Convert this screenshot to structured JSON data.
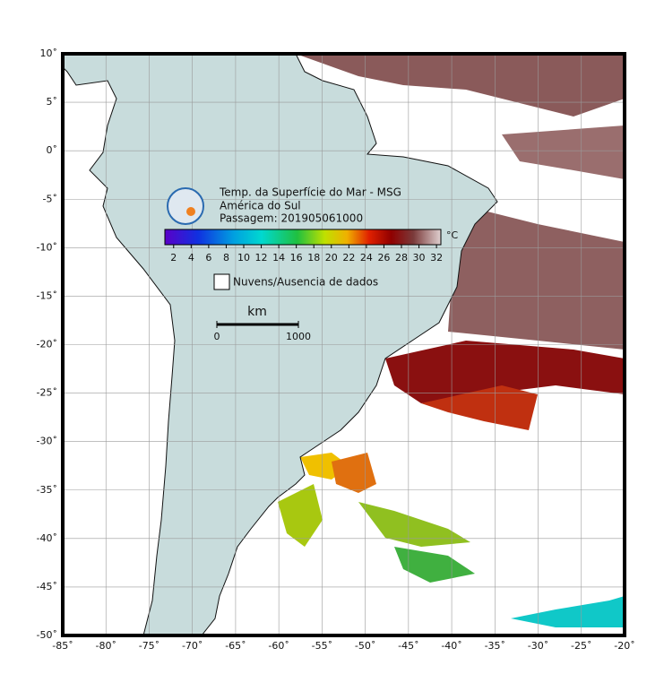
{
  "map": {
    "title_lines": [
      "Temp. da Superfície do Mar - MSG",
      "América do Sul",
      "Passagem: 201905061000"
    ],
    "lonlim": [
      -85,
      -20
    ],
    "latlim": [
      -50,
      10
    ],
    "lon_ticks": [
      {
        "value": -85,
        "label": "-85˚"
      },
      {
        "value": -80,
        "label": "-80˚"
      },
      {
        "value": -75,
        "label": "-75˚"
      },
      {
        "value": -70,
        "label": "-70˚"
      },
      {
        "value": -65,
        "label": "-65˚"
      },
      {
        "value": -60,
        "label": "-60˚"
      },
      {
        "value": -55,
        "label": "-55˚"
      },
      {
        "value": -50,
        "label": "-50˚"
      },
      {
        "value": -45,
        "label": "-45˚"
      },
      {
        "value": -40,
        "label": "-40˚"
      },
      {
        "value": -35,
        "label": "-35˚"
      },
      {
        "value": -30,
        "label": "-30˚"
      },
      {
        "value": -25,
        "label": "-25˚"
      },
      {
        "value": -20,
        "label": "-20˚"
      }
    ],
    "lat_ticks": [
      {
        "value": 10,
        "label": "10˚"
      },
      {
        "value": 5,
        "label": "5˚"
      },
      {
        "value": 0,
        "label": "0˚"
      },
      {
        "value": -5,
        "label": "-5˚"
      },
      {
        "value": -10,
        "label": "-10˚"
      },
      {
        "value": -15,
        "label": "-15˚"
      },
      {
        "value": -20,
        "label": "-20˚"
      },
      {
        "value": -25,
        "label": "-25˚"
      },
      {
        "value": -30,
        "label": "-30˚"
      },
      {
        "value": -35,
        "label": "-35˚"
      },
      {
        "value": -40,
        "label": "-40˚"
      },
      {
        "value": -45,
        "label": "-45˚"
      },
      {
        "value": -50,
        "label": "-50˚"
      }
    ],
    "colorbar": {
      "unit": "°C",
      "range": [
        1,
        32.5
      ],
      "ticks": [
        2,
        4,
        6,
        8,
        10,
        12,
        14,
        16,
        18,
        20,
        22,
        24,
        26,
        28,
        30,
        32
      ]
    },
    "legend": "Nuvens/Ausencia de dados",
    "scale": {
      "unit": "km",
      "ticks": [
        0,
        1000
      ],
      "range": [
        0,
        1000
      ]
    }
  }
}
